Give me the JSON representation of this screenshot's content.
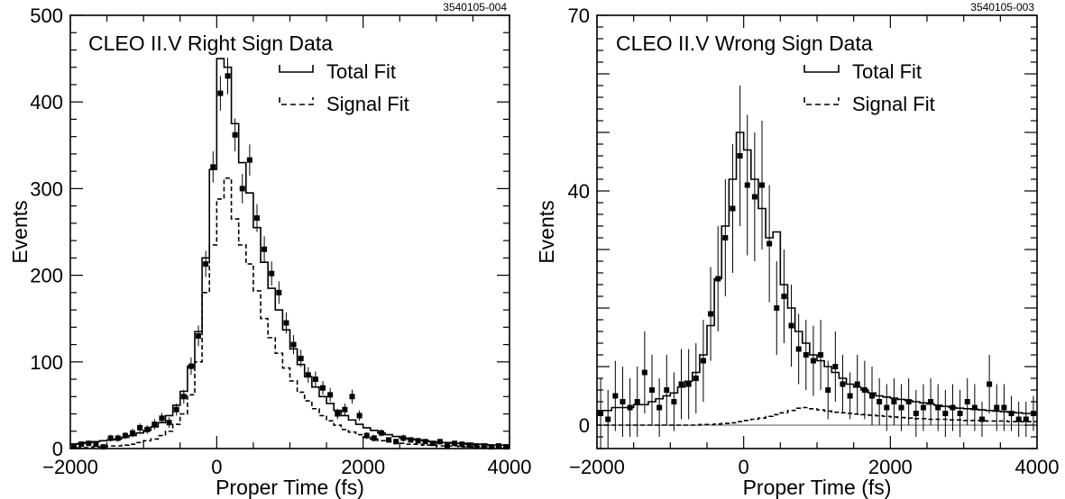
{
  "chart_data": [
    {
      "type": "line",
      "title": "CLEO II.V Right Sign Data",
      "figure_id": "3540105-004",
      "xlabel": "Proper Time (fs)",
      "ylabel": "Events",
      "xlim": [
        -2000,
        4000
      ],
      "ylim": [
        0,
        500
      ],
      "xticks": [
        -2000,
        0,
        2000,
        4000
      ],
      "xtick_labels": [
        "−2000",
        "0",
        "2000",
        "4000"
      ],
      "yticks": [
        0,
        100,
        200,
        300,
        400,
        500
      ],
      "ytick_labels": [
        "0",
        "100",
        "200",
        "300",
        "400",
        "500"
      ],
      "legend": [
        {
          "label": "Total Fit",
          "style": "solid"
        },
        {
          "label": "Signal Fit",
          "style": "dashed"
        }
      ],
      "legend_position": "top-right",
      "bin_width": 100,
      "series": [
        {
          "name": "Data",
          "kind": "points",
          "x": [
            -1950,
            -1850,
            -1750,
            -1650,
            -1550,
            -1450,
            -1350,
            -1250,
            -1150,
            -1050,
            -950,
            -850,
            -750,
            -650,
            -550,
            -450,
            -350,
            -250,
            -150,
            -50,
            50,
            150,
            250,
            350,
            450,
            550,
            650,
            750,
            850,
            950,
            1050,
            1150,
            1250,
            1350,
            1450,
            1550,
            1650,
            1750,
            1850,
            1950,
            2050,
            2150,
            2250,
            2350,
            2450,
            2550,
            2650,
            2750,
            2850,
            2950,
            3050,
            3150,
            3250,
            3350,
            3450,
            3550,
            3650,
            3750,
            3850,
            3950
          ],
          "y": [
            3,
            5,
            6,
            5,
            2,
            12,
            12,
            15,
            18,
            24,
            22,
            28,
            35,
            30,
            45,
            60,
            95,
            130,
            213,
            325,
            410,
            430,
            362,
            300,
            333,
            266,
            230,
            202,
            180,
            145,
            120,
            104,
            85,
            80,
            70,
            62,
            40,
            45,
            60,
            38,
            15,
            12,
            18,
            10,
            8,
            12,
            10,
            9,
            8,
            6,
            8,
            3,
            6,
            5,
            4,
            3,
            3,
            2,
            3,
            2
          ],
          "yerr": [
            2,
            2,
            3,
            2,
            2,
            4,
            4,
            4,
            5,
            5,
            5,
            6,
            6,
            6,
            7,
            8,
            10,
            12,
            15,
            18,
            20,
            21,
            19,
            17,
            18,
            16,
            15,
            14,
            13,
            12,
            11,
            10,
            9,
            9,
            8,
            8,
            6,
            7,
            8,
            6,
            4,
            4,
            4,
            3,
            3,
            4,
            3,
            3,
            3,
            3,
            3,
            2,
            2,
            2,
            2,
            2,
            2,
            1,
            2,
            1
          ]
        },
        {
          "name": "Total Fit",
          "kind": "step",
          "style": "solid",
          "x_edges": [
            -2000,
            -1900,
            -1800,
            -1700,
            -1600,
            -1500,
            -1400,
            -1300,
            -1200,
            -1100,
            -1000,
            -900,
            -800,
            -700,
            -600,
            -500,
            -400,
            -300,
            -200,
            -100,
            0,
            100,
            200,
            300,
            400,
            500,
            600,
            700,
            800,
            900,
            1000,
            1100,
            1200,
            1300,
            1400,
            1500,
            1600,
            1700,
            1800,
            1900,
            2000,
            2100,
            2200,
            2300,
            2400,
            2500,
            2600,
            2700,
            2800,
            2900,
            3000,
            3100,
            3200,
            3300,
            3400,
            3500,
            3600,
            3700,
            3800,
            3900,
            4000
          ],
          "y": [
            5,
            6,
            7,
            8,
            9,
            10,
            11,
            13,
            15,
            18,
            21,
            25,
            30,
            38,
            50,
            66,
            95,
            135,
            220,
            322,
            450,
            440,
            375,
            330,
            295,
            255,
            215,
            185,
            160,
            137,
            115,
            97,
            83,
            71,
            60,
            52,
            44,
            38,
            33,
            28,
            24,
            21,
            18,
            16,
            14,
            12,
            11,
            10,
            9,
            8,
            7,
            7,
            6,
            6,
            5,
            5,
            5,
            4,
            4,
            4
          ]
        },
        {
          "name": "Signal Fit",
          "kind": "step",
          "style": "dashed",
          "x_edges": [
            -2000,
            -1900,
            -1800,
            -1700,
            -1600,
            -1500,
            -1400,
            -1300,
            -1200,
            -1100,
            -1000,
            -900,
            -800,
            -700,
            -600,
            -500,
            -400,
            -300,
            -200,
            -100,
            0,
            100,
            200,
            300,
            400,
            500,
            600,
            700,
            800,
            900,
            1000,
            1100,
            1200,
            1300,
            1400,
            1500,
            1600,
            1700,
            1800,
            1900,
            2000,
            2100,
            2200,
            2300,
            2400,
            2500,
            2600,
            2700,
            2800,
            2900,
            3000,
            3100,
            3200,
            3300,
            3400,
            3500,
            3600,
            3700,
            3800,
            3900,
            4000
          ],
          "y": [
            0,
            1,
            1,
            2,
            2,
            3,
            3,
            4,
            5,
            7,
            9,
            11,
            15,
            20,
            28,
            40,
            62,
            100,
            180,
            235,
            288,
            312,
            265,
            235,
            213,
            182,
            150,
            128,
            110,
            93,
            78,
            65,
            55,
            46,
            38,
            32,
            27,
            22,
            19,
            16,
            13,
            11,
            9,
            8,
            7,
            6,
            5,
            5,
            4,
            4,
            3,
            3,
            3,
            2,
            2,
            2,
            2,
            2,
            2,
            2
          ]
        }
      ]
    },
    {
      "type": "line",
      "title": "CLEO II.V Wrong Sign Data",
      "figure_id": "3540105-003",
      "xlabel": "Proper Time (fs)",
      "ylabel": "Events",
      "xlim": [
        -2000,
        4000
      ],
      "ylim": [
        -4,
        70
      ],
      "xticks": [
        -2000,
        0,
        2000,
        4000
      ],
      "xtick_labels": [
        "−2000",
        "0",
        "2000",
        "4000"
      ],
      "yticks": [
        0,
        40,
        70
      ],
      "ytick_labels": [
        "0",
        "40",
        "70"
      ],
      "legend": [
        {
          "label": "Total Fit",
          "style": "solid"
        },
        {
          "label": "Signal Fit",
          "style": "dashed"
        }
      ],
      "legend_position": "top-right",
      "bin_width": 100,
      "series": [
        {
          "name": "Data",
          "kind": "points",
          "x": [
            -1950,
            -1850,
            -1750,
            -1650,
            -1550,
            -1450,
            -1350,
            -1250,
            -1150,
            -1050,
            -950,
            -850,
            -750,
            -650,
            -550,
            -450,
            -350,
            -250,
            -150,
            -50,
            50,
            150,
            250,
            350,
            450,
            550,
            650,
            750,
            850,
            950,
            1050,
            1150,
            1250,
            1350,
            1450,
            1550,
            1650,
            1750,
            1850,
            1950,
            2050,
            2150,
            2250,
            2350,
            2450,
            2550,
            2650,
            2750,
            2850,
            2950,
            3050,
            3150,
            3250,
            3350,
            3450,
            3550,
            3650,
            3750,
            3850,
            3950
          ],
          "y": [
            2,
            1,
            5,
            4,
            3,
            4,
            9,
            6,
            3,
            6,
            4,
            7,
            7,
            8,
            11,
            19,
            25,
            32,
            37,
            46,
            41,
            39,
            41,
            31,
            20,
            22,
            17,
            13,
            12,
            11,
            12,
            6,
            10,
            7,
            5,
            7,
            6,
            5,
            4,
            3,
            4,
            3,
            4,
            2,
            3,
            4,
            3,
            2,
            3,
            2,
            4,
            3,
            1,
            7,
            3,
            3,
            2,
            1,
            1,
            2
          ],
          "yerr": [
            6,
            5,
            6,
            6,
            5,
            6,
            7,
            6,
            5,
            6,
            5,
            6,
            6,
            6,
            7,
            8,
            9,
            10,
            11,
            12,
            12,
            11,
            11,
            10,
            8,
            8,
            7,
            6,
            6,
            6,
            6,
            5,
            6,
            5,
            4,
            5,
            5,
            5,
            4,
            4,
            4,
            4,
            4,
            4,
            4,
            4,
            4,
            4,
            4,
            4,
            4,
            4,
            3,
            5,
            4,
            4,
            3,
            3,
            3,
            3
          ]
        },
        {
          "name": "Total Fit",
          "kind": "step",
          "style": "solid",
          "x_edges": [
            -2000,
            -1900,
            -1800,
            -1700,
            -1600,
            -1500,
            -1400,
            -1300,
            -1200,
            -1100,
            -1000,
            -900,
            -800,
            -700,
            -600,
            -500,
            -400,
            -300,
            -200,
            -100,
            0,
            100,
            200,
            300,
            400,
            500,
            600,
            700,
            800,
            900,
            1000,
            1100,
            1200,
            1300,
            1400,
            1500,
            1600,
            1700,
            1800,
            1900,
            2000,
            2100,
            2200,
            2300,
            2400,
            2500,
            2600,
            2700,
            2800,
            2900,
            3000,
            3100,
            3200,
            3300,
            3400,
            3500,
            3600,
            3700,
            3800,
            3900,
            4000
          ],
          "y": [
            2.5,
            2.5,
            3,
            3,
            3,
            3.5,
            3.5,
            4,
            4.5,
            5,
            5.5,
            6.5,
            7.5,
            9,
            12,
            17,
            25,
            34,
            42,
            50,
            47,
            42,
            37,
            32,
            33,
            24,
            20,
            16,
            14,
            12,
            11,
            10,
            9,
            8,
            7,
            6.5,
            6,
            5.5,
            5,
            4.8,
            4.6,
            4.4,
            4.2,
            4,
            3.8,
            3.6,
            3.4,
            3.2,
            3,
            2.9,
            2.8,
            2.7,
            2.6,
            2.5,
            2.4,
            2.3,
            2.2,
            2.1,
            2,
            2
          ]
        },
        {
          "name": "Signal Fit",
          "kind": "step",
          "style": "dashed",
          "x_edges": [
            -2000,
            -1900,
            -1800,
            -1700,
            -1600,
            -1500,
            -1400,
            -1300,
            -1200,
            -1100,
            -1000,
            -900,
            -800,
            -700,
            -600,
            -500,
            -400,
            -300,
            -200,
            -100,
            0,
            100,
            200,
            300,
            400,
            500,
            600,
            700,
            800,
            900,
            1000,
            1100,
            1200,
            1300,
            1400,
            1500,
            1600,
            1700,
            1800,
            1900,
            2000,
            2100,
            2200,
            2300,
            2400,
            2500,
            2600,
            2700,
            2800,
            2900,
            3000,
            3100,
            3200,
            3300,
            3400,
            3500,
            3600,
            3700,
            3800,
            3900,
            4000
          ],
          "y": [
            0,
            0,
            0,
            0,
            0,
            0,
            0,
            0,
            0,
            0,
            0,
            0,
            0,
            0,
            0.1,
            0.1,
            0.2,
            0.3,
            0.4,
            0.6,
            0.8,
            1,
            1.2,
            1.5,
            1.8,
            2.1,
            2.5,
            2.9,
            3,
            2.8,
            2.6,
            2.4,
            2.2,
            2.1,
            2,
            1.9,
            1.8,
            1.7,
            1.6,
            1.5,
            1.4,
            1.3,
            1.2,
            1.1,
            1.1,
            1,
            1,
            1,
            0.9,
            0.9,
            0.8,
            0.8,
            0.8,
            0.7,
            0.7,
            0.7,
            0.6,
            0.6,
            0.6,
            0.6
          ]
        }
      ]
    }
  ]
}
